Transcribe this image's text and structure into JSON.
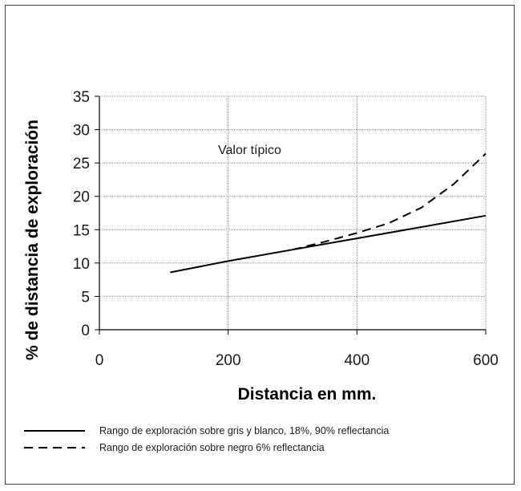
{
  "chart_data": {
    "type": "line",
    "title": "",
    "xlabel": "Distancia en mm.",
    "ylabel": "% de distancia de exploración",
    "xlim": [
      0,
      600
    ],
    "ylim": [
      0,
      35
    ],
    "xticks": [
      "0",
      "200",
      "400",
      "600"
    ],
    "yticks": [
      "0",
      "5",
      "10",
      "15",
      "20",
      "25",
      "30",
      "35"
    ],
    "grid": true,
    "annotation": "Valor típico",
    "legend_position": "bottom",
    "series": [
      {
        "name": "Rango de exploración sobre gris y blanco, 18%, 90% reflectancia",
        "style": "solid",
        "x": [
          110,
          200,
          300,
          400,
          500,
          600
        ],
        "y": [
          8.6,
          10.3,
          12.0,
          13.7,
          15.4,
          17.1
        ]
      },
      {
        "name": "Rango de exploración sobre negro 6% reflectancia",
        "style": "dashed",
        "x": [
          300,
          350,
          400,
          450,
          500,
          550,
          600
        ],
        "y": [
          12.0,
          13.2,
          14.5,
          16.0,
          18.3,
          21.8,
          26.4
        ]
      }
    ]
  }
}
